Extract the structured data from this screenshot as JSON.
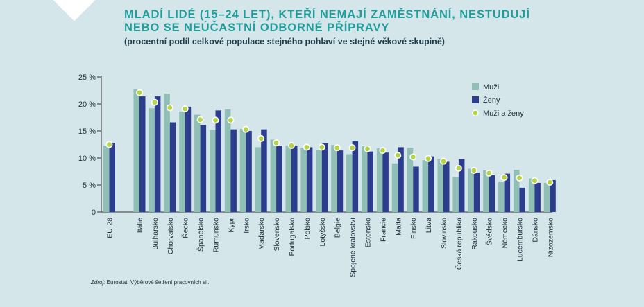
{
  "title_line1": "MLADÍ LIDÉ (15–24 LET), KTEŘÍ NEMAJÍ ZAMĚSTNÁNÍ, NESTUDUJÍ",
  "title_line2": "NEBO SE NEÚČASTNÍ ODBORNÉ PŘÍPRAVY",
  "subtitle": "(procentní podíl celkové populace stejného pohlaví ve stejné věkové skupině)",
  "source_label": "Zdroj:",
  "source_text": " Eurostat, Výběrové šetření pracovních sil.",
  "colors": {
    "men": "#8fbfb5",
    "women": "#2b3d8c",
    "both": "#b4d445",
    "axis": "#333333"
  },
  "chart_data": {
    "type": "bar",
    "ylim": [
      0,
      25
    ],
    "y_ticks": [
      0,
      5,
      10,
      15,
      20,
      25
    ],
    "y_tick_labels": [
      "0",
      "5 %",
      "10 %",
      "15 %",
      "20 %",
      "25 %"
    ],
    "legend_position": "top-right",
    "categories": [
      "EU-28",
      "Itálie",
      "Bulharsko",
      "Chorvatsko",
      "Řecko",
      "Španělsko",
      "Rumunsko",
      "Kypr",
      "Irsko",
      "Maďarsko",
      "Slovensko",
      "Portugalsko",
      "Polsko",
      "Lotyšsko",
      "Belgie",
      "Spojené království",
      "Estonsko",
      "Francie",
      "Malta",
      "Finsko",
      "Litva",
      "Slovinsko",
      "Česká republika",
      "Rakousko",
      "Švédsko",
      "Německo",
      "Lucembursko",
      "Dánsko",
      "Nizozemsko"
    ],
    "series": [
      {
        "name": "Muži",
        "kind": "bar",
        "values": [
          12.3,
          22.7,
          19.2,
          21.9,
          18.6,
          18.0,
          15.2,
          19.0,
          15.4,
          12.0,
          13.4,
          12.3,
          11.9,
          11.5,
          12.4,
          10.7,
          12.2,
          11.8,
          9.0,
          11.9,
          9.6,
          9.8,
          6.5,
          8.0,
          7.7,
          5.6,
          7.8,
          6.2,
          5.4
        ]
      },
      {
        "name": "Ženy",
        "kind": "bar",
        "values": [
          12.8,
          21.4,
          21.4,
          16.6,
          19.5,
          16.1,
          18.8,
          15.3,
          15.0,
          15.3,
          12.3,
          12.3,
          12.0,
          12.8,
          11.4,
          13.1,
          11.2,
          11.0,
          12.0,
          8.4,
          10.3,
          9.3,
          9.8,
          7.3,
          6.8,
          7.1,
          4.5,
          5.4,
          5.9
        ]
      },
      {
        "name": "Muži a ženy",
        "kind": "marker",
        "values": [
          12.5,
          22.1,
          20.3,
          19.3,
          19.1,
          17.1,
          17.0,
          17.0,
          15.3,
          13.6,
          12.8,
          12.3,
          12.0,
          12.0,
          11.9,
          11.9,
          11.7,
          11.4,
          10.5,
          10.2,
          9.9,
          9.4,
          8.1,
          7.7,
          7.2,
          6.4,
          6.3,
          5.8,
          5.5
        ]
      }
    ]
  }
}
